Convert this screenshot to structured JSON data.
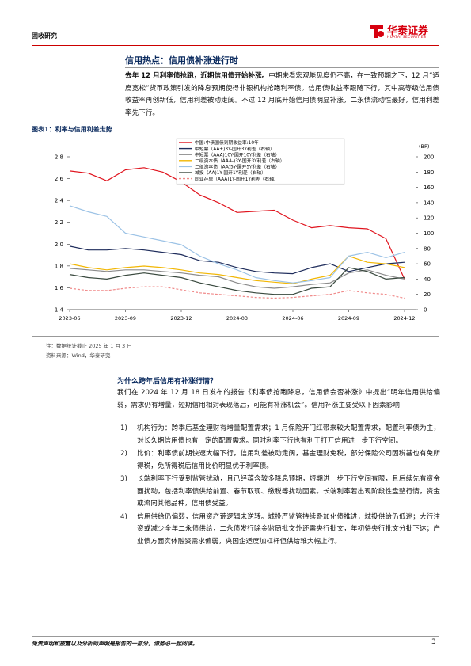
{
  "header": {
    "section": "固收研究",
    "logo_cn": "华泰证券",
    "logo_en": "HUATAI SECURITIES"
  },
  "section1": {
    "title": "信用热点：信用债补涨进行时",
    "lead": "去年 12 月利率债抢跑，近期信用债开始补涨。",
    "text": "中期来看宏观能见度仍不高，在一致预期之下，12 月“适度宽松”货币政策引发的降息预期使得非银机构抢跑利率债。信用债收益率跟随下行，其中高等级信用债收益率再创新低，信用利差被动走阔。不过 12 月底开始信用债明显补涨，二永债流动性最好，信用利差率先下行。"
  },
  "figure": {
    "title": "图表1：利率与信用利差走势",
    "notes": [
      "注：数据统计截止 2025 年 1 月 3 日",
      "资料来源：Wind，华泰研究"
    ]
  },
  "chart_data": {
    "type": "line",
    "y2_label": "(BP)",
    "x": [
      "2023-06",
      "2023-07",
      "2023-08",
      "2023-09",
      "2023-10",
      "2023-11",
      "2023-12",
      "2024-01",
      "2024-02",
      "2024-03",
      "2024-04",
      "2024-05",
      "2024-06",
      "2024-07",
      "2024-08",
      "2024-09",
      "2024-10",
      "2024-11",
      "2024-12"
    ],
    "xticks": [
      "2023-06",
      "2023-09",
      "2023-12",
      "2024-03",
      "2024-06",
      "2024-09",
      "2024-12"
    ],
    "ylim": [
      1.4,
      2.8
    ],
    "yticks": [
      1.4,
      1.6,
      1.8,
      {
        "value": 2,
        "label": "2.0"
      },
      2.2,
      2.4,
      2.6,
      2.8
    ],
    "y2lim": [
      0,
      200
    ],
    "y2ticks": [
      0,
      20,
      40,
      60,
      80,
      100,
      120,
      140,
      160,
      180,
      200
    ],
    "series": [
      {
        "name": "中国:中债国债到期收益率:10年",
        "color": "#e0141e",
        "axis": "y",
        "values": [
          2.67,
          2.65,
          2.58,
          2.68,
          2.7,
          2.66,
          2.57,
          2.45,
          2.38,
          2.29,
          2.3,
          2.31,
          2.22,
          2.15,
          2.17,
          2.15,
          2.14,
          2.05,
          1.68
        ]
      },
      {
        "name": "中短票（AA+)3Y-国开3Y利差（右轴）",
        "color": "#1f2d5c",
        "axis": "y2",
        "values": [
          83,
          78,
          78,
          80,
          78,
          75,
          72,
          64,
          62,
          55,
          50,
          48,
          47,
          55,
          60,
          50,
          55,
          60,
          62
        ]
      },
      {
        "name": "中短票（AAA)10Y-国开10Y利差（右轴）",
        "color": "#8c8c8c",
        "axis": "y2",
        "values": [
          54,
          52,
          50,
          52,
          52,
          50,
          48,
          45,
          43,
          35,
          30,
          28,
          30,
          33,
          35,
          48,
          52,
          45,
          40
        ]
      },
      {
        "name": "二级资本债（AAA-)3Y-国开3Y利差（右轴）",
        "color": "#f2b705",
        "axis": "y2",
        "values": [
          60,
          55,
          52,
          55,
          57,
          55,
          52,
          48,
          46,
          42,
          38,
          36,
          34,
          40,
          45,
          70,
          62,
          60,
          55
        ]
      },
      {
        "name": "二级资本债（AA)5Y-国开5Y利差（右轴）",
        "color": "#9dc3e6",
        "axis": "y2",
        "values": [
          136,
          128,
          122,
          100,
          95,
          90,
          85,
          70,
          60,
          52,
          42,
          38,
          35,
          38,
          42,
          70,
          75,
          68,
          75
        ]
      },
      {
        "name": "城投（AA)1Y-国开1Y利差（右轴）",
        "color": "#3a4a3f",
        "axis": "y2",
        "values": [
          46,
          42,
          40,
          45,
          48,
          45,
          42,
          35,
          30,
          25,
          22,
          20,
          20,
          28,
          30,
          55,
          50,
          40,
          42
        ]
      },
      {
        "name": "同业存单（AAA)1Y-国开1Y利差（右轴）",
        "color": "#f08a8a",
        "axis": "y2",
        "dashed": true,
        "values": [
          28,
          25,
          25,
          28,
          30,
          30,
          26,
          22,
          20,
          18,
          16,
          15,
          16,
          18,
          20,
          25,
          22,
          20,
          15
        ]
      }
    ]
  },
  "section2": {
    "title": "为什么跨年后信用有补涨行情？",
    "text": "我们在 2024 年 12 月 18 日发布的报告《利率债抢跑降息，信用债会否补涨》中提出“明年信用供给偏弱，需求仍有增量，短期信用相对表现落后，可能有补涨机会”。信用补涨主要受以下因素影响",
    "items": [
      {
        "num": "1)",
        "text": "机构行为：跨季后基金理财有增量配置需求；1 月保险开门红带来较大配置需求，配置利率债为主，对长久期信用债也有一定的配置需求。同时利率下行也有利于打开信用进一步下行空间。"
      },
      {
        "num": "2)",
        "text": "比价：利率债前期快速大幅下行，信用利差被动走阔，基金理财免税，部分保险公司因税基也有免所得税，免所得税后信用比价明显优于利率债。"
      },
      {
        "num": "3)",
        "text": "长端利率下行受到监管扰动，且已经蕴含较多降息预期，短期进一步下行空间有限，且后续先有资金面扰动，包括利率债供给前置、春节取现、缴税等扰动因素。长端利率若出现阶段性盘整行情，资金或流向其他品种，信用债受益。"
      },
      {
        "num": "4)",
        "text": "信用供给仍偏弱，信用资产荒逻辑未逆转。城投严监管持续叠加化债推进，城投供给仍低迷；大行注资或减少全年二永债供给，二永债发行除金监局批文外还需央行批文，年初待央行批文分批下达；产业债方面实体融资需求偏弱，央国企适度加杠杆但供给难大幅上行。"
      }
    ]
  },
  "footer": {
    "disclaimer": "免责声明和披露以及分析师声明是报告的一部分，请务必一起阅读。",
    "page": "3"
  }
}
